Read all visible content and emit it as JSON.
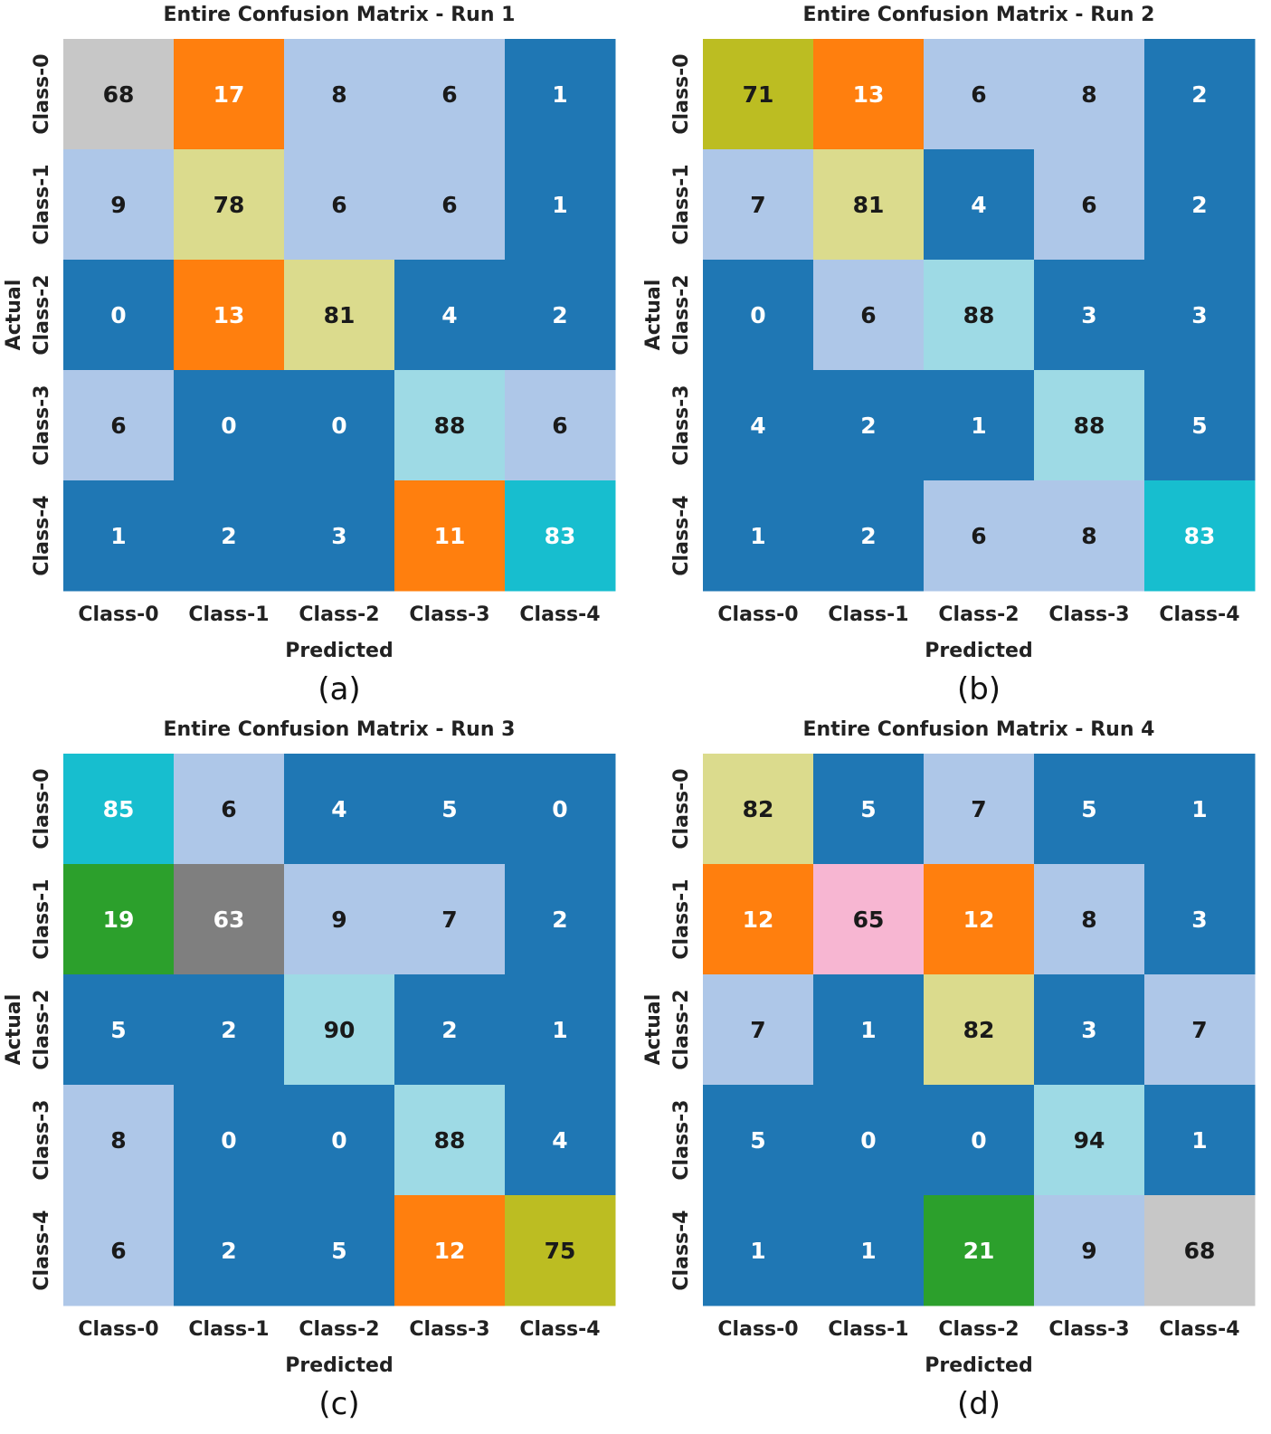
{
  "chart_data": [
    {
      "type": "heatmap",
      "title": "Entire Confusion Matrix - Run 1",
      "xlabel": "Predicted",
      "ylabel": "Actual",
      "caption": "(a)",
      "x_categories": [
        "Class-0",
        "Class-1",
        "Class-2",
        "Class-3",
        "Class-4"
      ],
      "y_categories": [
        "Class-0",
        "Class-1",
        "Class-2",
        "Class-3",
        "Class-4"
      ],
      "values": [
        [
          68,
          17,
          8,
          6,
          1
        ],
        [
          9,
          78,
          6,
          6,
          1
        ],
        [
          0,
          13,
          81,
          4,
          2
        ],
        [
          6,
          0,
          0,
          88,
          6
        ],
        [
          1,
          2,
          3,
          11,
          83
        ]
      ]
    },
    {
      "type": "heatmap",
      "title": "Entire Confusion Matrix - Run 2",
      "xlabel": "Predicted",
      "ylabel": "Actual",
      "caption": "(b)",
      "x_categories": [
        "Class-0",
        "Class-1",
        "Class-2",
        "Class-3",
        "Class-4"
      ],
      "y_categories": [
        "Class-0",
        "Class-1",
        "Class-2",
        "Class-3",
        "Class-4"
      ],
      "values": [
        [
          71,
          13,
          6,
          8,
          2
        ],
        [
          7,
          81,
          4,
          6,
          2
        ],
        [
          0,
          6,
          88,
          3,
          3
        ],
        [
          4,
          2,
          1,
          88,
          5
        ],
        [
          1,
          2,
          6,
          8,
          83
        ]
      ]
    },
    {
      "type": "heatmap",
      "title": "Entire Confusion Matrix - Run 3",
      "xlabel": "Predicted",
      "ylabel": "Actual",
      "caption": "(c)",
      "x_categories": [
        "Class-0",
        "Class-1",
        "Class-2",
        "Class-3",
        "Class-4"
      ],
      "y_categories": [
        "Class-0",
        "Class-1",
        "Class-2",
        "Class-3",
        "Class-4"
      ],
      "values": [
        [
          85,
          6,
          4,
          5,
          0
        ],
        [
          19,
          63,
          9,
          7,
          2
        ],
        [
          5,
          2,
          90,
          2,
          1
        ],
        [
          8,
          0,
          0,
          88,
          4
        ],
        [
          6,
          2,
          5,
          12,
          75
        ]
      ]
    },
    {
      "type": "heatmap",
      "title": "Entire Confusion Matrix - Run 4",
      "xlabel": "Predicted",
      "ylabel": "Actual",
      "caption": "(d)",
      "x_categories": [
        "Class-0",
        "Class-1",
        "Class-2",
        "Class-3",
        "Class-4"
      ],
      "y_categories": [
        "Class-0",
        "Class-1",
        "Class-2",
        "Class-3",
        "Class-4"
      ],
      "values": [
        [
          82,
          5,
          7,
          5,
          1
        ],
        [
          12,
          65,
          12,
          8,
          3
        ],
        [
          7,
          1,
          82,
          3,
          7
        ],
        [
          5,
          0,
          0,
          94,
          1
        ],
        [
          1,
          1,
          21,
          9,
          68
        ]
      ]
    }
  ],
  "colormap": {
    "name": "tab20-style categorical",
    "text_dark": "#1a1a1a",
    "text_light": "#ffffff"
  }
}
